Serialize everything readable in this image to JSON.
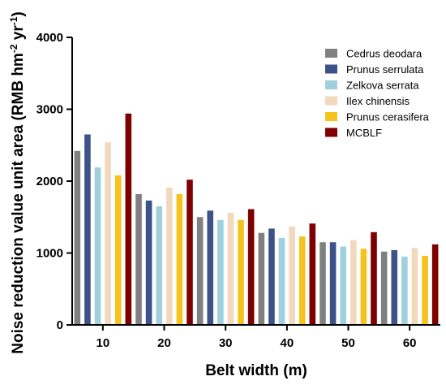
{
  "chart_data": {
    "type": "bar",
    "title": "",
    "xlabel": "Belt width (m)",
    "ylabel_main": "Noise reduction value unit area (RMB hm",
    "ylabel_sup1": "-2",
    "ylabel_mid": " yr",
    "ylabel_sup2": "-1",
    "ylabel_end": ")",
    "categories": [
      "10",
      "20",
      "30",
      "40",
      "50",
      "60"
    ],
    "ylim": [
      0,
      4000
    ],
    "yticks": [
      0,
      1000,
      2000,
      3000,
      4000
    ],
    "yticklabels": [
      "0",
      "1000",
      "2000",
      "3000",
      "4000"
    ],
    "grid": false,
    "legend_position": "top-right",
    "series": [
      {
        "name": "Cedrus deodara",
        "color": "#808080",
        "values": [
          2420,
          1820,
          1500,
          1280,
          1150,
          1020
        ]
      },
      {
        "name": "Prunus serrulata",
        "color": "#3c5288",
        "values": [
          2650,
          1730,
          1590,
          1340,
          1150,
          1040
        ]
      },
      {
        "name": "Zelkova serrata",
        "color": "#9fd0de",
        "values": [
          2190,
          1650,
          1460,
          1210,
          1090,
          950
        ]
      },
      {
        "name": "Ilex chinensis",
        "color": "#f2d9bd",
        "values": [
          2540,
          1910,
          1560,
          1370,
          1180,
          1070
        ]
      },
      {
        "name": "Prunus cerasifera",
        "color": "#f6c21d",
        "values": [
          2080,
          1820,
          1460,
          1230,
          1060,
          960
        ]
      },
      {
        "name": "MCBLF",
        "color": "#7f0000",
        "values": [
          2940,
          2020,
          1610,
          1410,
          1290,
          1120
        ]
      }
    ]
  }
}
